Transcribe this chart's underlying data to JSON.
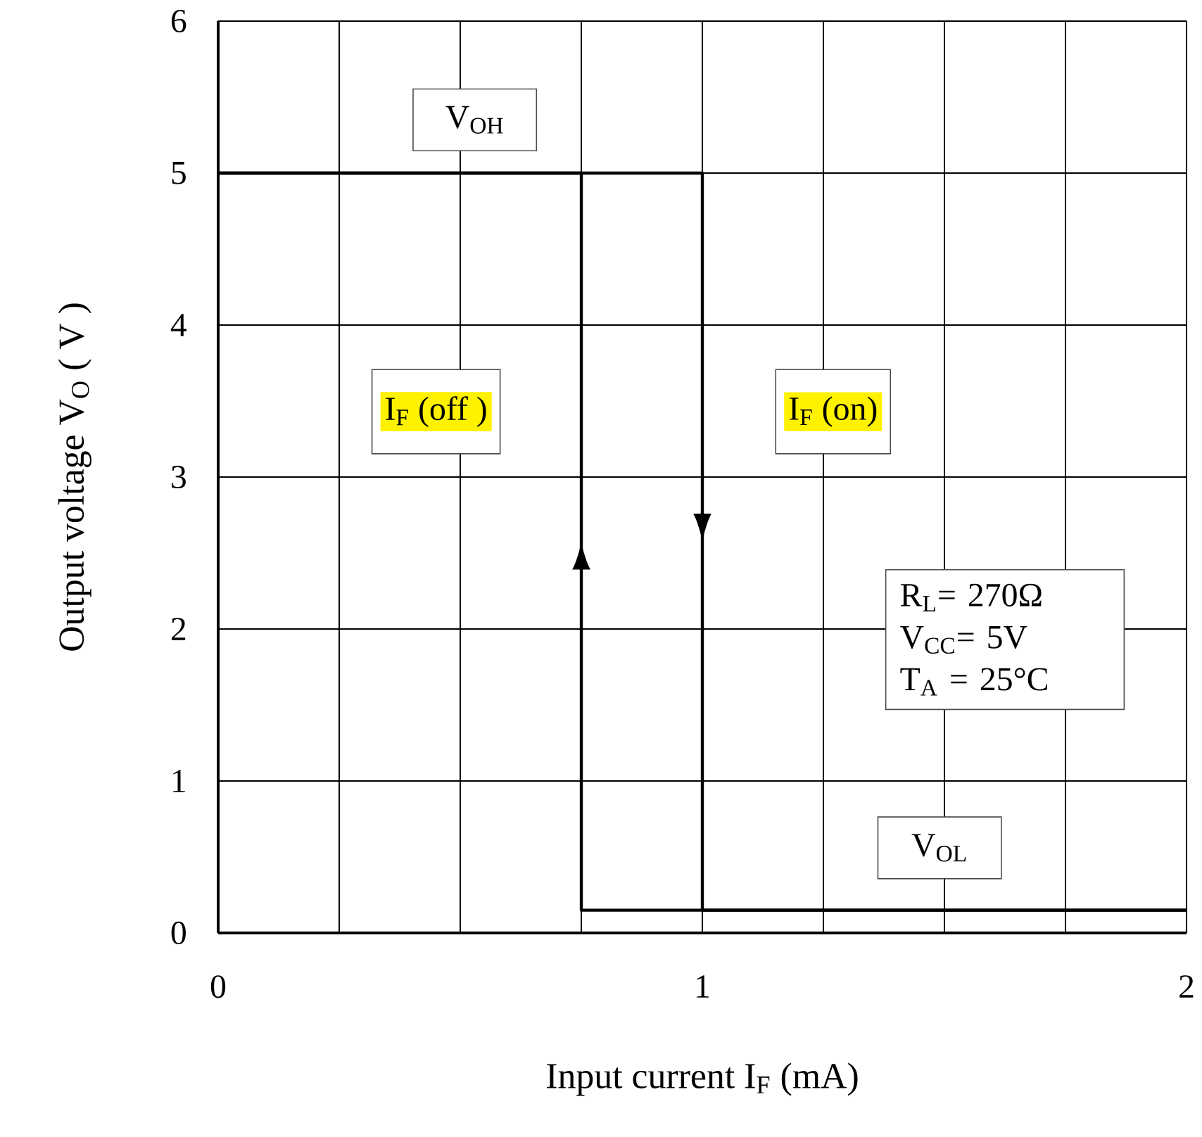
{
  "chart_data": {
    "type": "line",
    "xlabel": "Input current I$_{F}$ (mA)",
    "ylabel": "Output voltage V$_{O}$ ( V )",
    "series": [
      {
        "color": "#000000",
        "x": [
          0,
          1,
          1,
          2
        ],
        "values": [
          5,
          5,
          0.15,
          0.15
        ]
      },
      {
        "color": "#000000",
        "x": [
          2,
          0.75,
          0.75,
          0
        ],
        "values": [
          0.15,
          0.15,
          5,
          5
        ]
      }
    ],
    "xlim": [
      0,
      2
    ],
    "ylim": [
      0,
      6
    ],
    "xticks": [
      0,
      {
        "value": 0.25,
        "label": null
      },
      {
        "value": 0.5,
        "label": null
      },
      {
        "value": 0.75,
        "label": null
      },
      1,
      {
        "value": 1.25,
        "label": null
      },
      {
        "value": 1.5,
        "label": null
      },
      {
        "value": 1.75,
        "label": null
      },
      2
    ],
    "yticks": [
      0,
      1,
      2,
      3,
      4,
      5,
      6
    ],
    "grid": true,
    "marker": "none",
    "line_style": "solid",
    "annotations": [
      "V$_{OH}$",
      "I$_{F}$ (off )",
      "I$_{F}$ (on)",
      "R$_{L}$= 270Ω",
      "V$_{CC}$= 5V",
      "T$_{A}$ = 25°C",
      "V$_{OL}$"
    ]
  }
}
